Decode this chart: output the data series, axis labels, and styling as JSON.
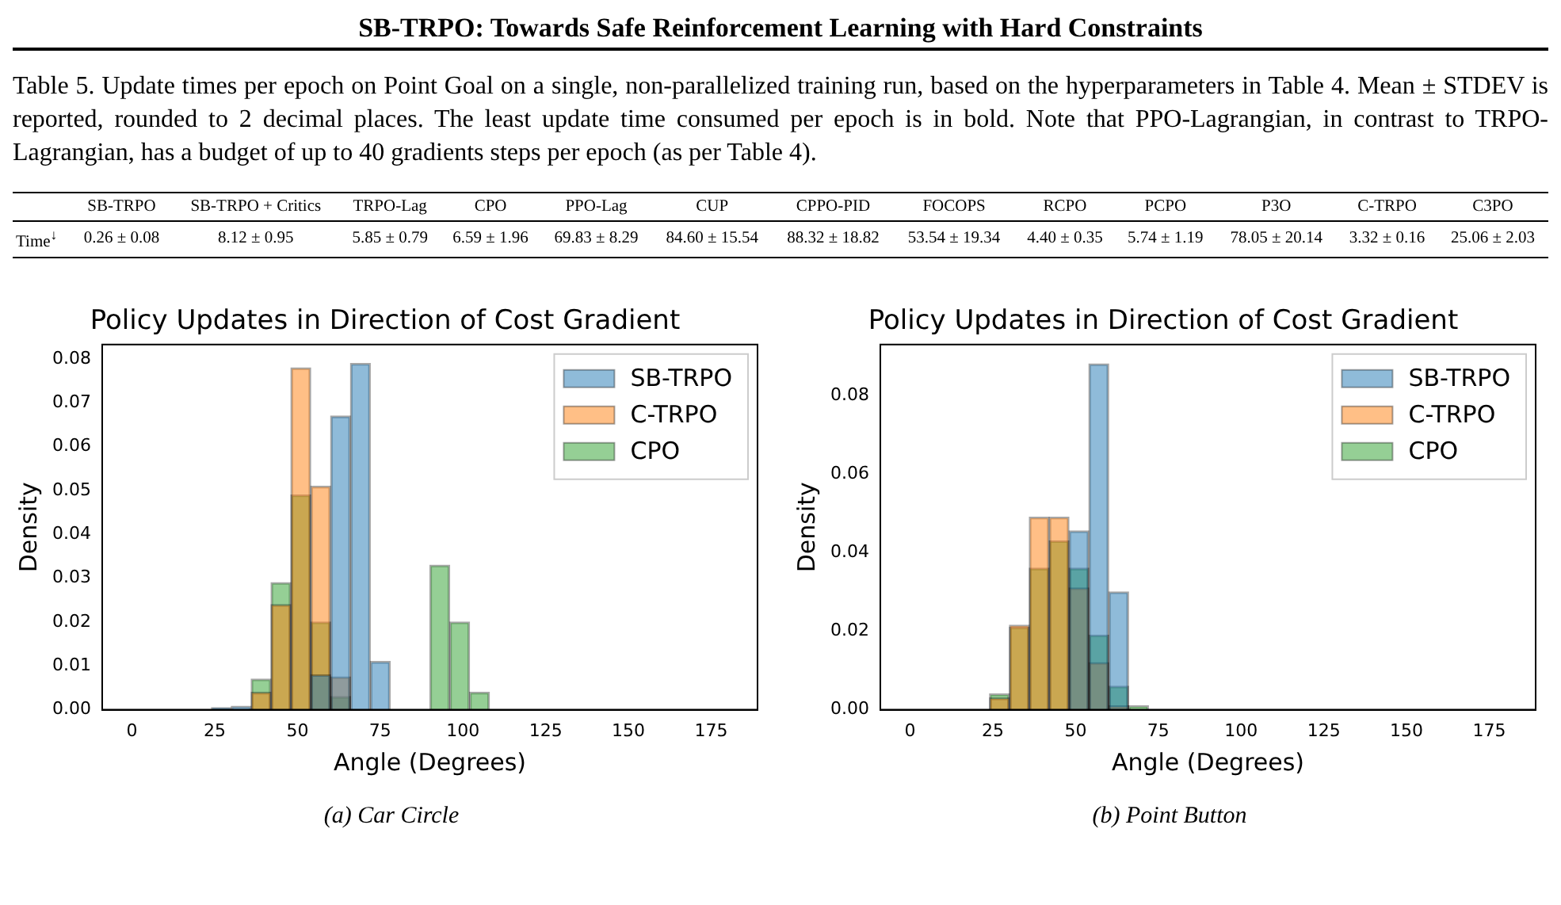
{
  "chart_data": [
    {
      "type": "other",
      "title": "SB-TRPO: Towards Safe Reinforcement Learning with Hard Constraints",
      "subtitle": "Table 5. Update times per epoch on Point Goal on a single, non-parallelized training run, based on the hyperparameters in Table 4. Mean ± STDEV is reported, rounded to 2 decimal places. The least update time consumed per epoch is in bold. Note that PPO-Lagrangian, in contrast to TRPO-Lagrangian, has a budget of up to 40 gradients steps per epoch (as per Table 4).",
      "categories": [
        "SB-TRPO",
        "SB-TRPO + Critics",
        "TRPO-Lag",
        "CPO",
        "PPO-Lag",
        "CUP",
        "CPPO-PID",
        "FOCOPS",
        "RCPO",
        "PCPO",
        "P3O",
        "C-TRPO",
        "C3PO"
      ],
      "annotations": [
        "Time$^{↓}$",
        "0.26 ± 0.08",
        "8.12 ± 0.95",
        "5.85 ± 0.79",
        "6.59 ± 1.96",
        "69.83 ± 8.29",
        "84.60 ± 15.54",
        "88.32 ± 18.82",
        "53.54 ± 19.34",
        "4.40 ± 0.35",
        "5.74 ± 1.19",
        "78.05 ± 20.14",
        "3.32 ± 0.16",
        "25.06 ± 2.03"
      ]
    },
    {
      "type": "histogram",
      "title": "Policy Updates in Direction of Cost Gradient",
      "xlabel": "Angle (Degrees)",
      "ylabel": "Density",
      "annotations": [
        "(a) Car Circle"
      ],
      "bins": [
        0,
        6,
        12,
        18,
        24,
        30,
        36,
        42,
        48,
        54,
        60,
        66,
        72,
        78,
        84,
        90,
        96,
        102,
        108,
        114,
        120,
        126,
        132,
        138,
        144,
        150,
        156,
        162,
        168,
        174,
        180
      ],
      "series": [
        {
          "name": "SB-TRPO",
          "color": "#1f77b4",
          "values": [
            null,
            0,
            0,
            0,
            0.0005,
            0.0008,
            0,
            0,
            0,
            0.008,
            0.067,
            0.079,
            0.011,
            0,
            0,
            0,
            0,
            0,
            0,
            0,
            0,
            0,
            0,
            0,
            0,
            0,
            0,
            0,
            0,
            0
          ]
        },
        {
          "name": "C-TRPO",
          "color": "#ff7f0e",
          "values": [
            0,
            0,
            0,
            0,
            0,
            0,
            0.004,
            0.024,
            0.078,
            0.051,
            0.0075,
            0,
            0,
            0,
            0,
            0,
            0,
            0,
            0,
            0,
            0,
            0,
            0,
            0,
            0,
            0,
            0,
            0,
            0,
            0
          ]
        },
        {
          "name": "CPO",
          "color": "#2ca02c",
          "values": [
            0,
            0,
            0,
            0,
            0,
            0,
            0.007,
            0.029,
            0.049,
            0.02,
            0.003,
            0,
            0,
            0,
            0,
            0.033,
            0.02,
            0.004,
            0,
            0,
            0,
            0,
            0,
            0,
            0,
            0,
            0,
            0,
            0,
            0
          ]
        }
      ],
      "xlim": [
        -9,
        189
      ],
      "xticks": [
        0,
        25,
        50,
        75,
        100,
        125,
        150,
        175
      ],
      "ylim": [
        0,
        0.0833
      ],
      "yticks": [
        {
          "value": 0,
          "label": "0.00"
        },
        0.01,
        0.02,
        0.03,
        0.04,
        0.05,
        0.06,
        0.07,
        0.08
      ],
      "legend": "top right"
    },
    {
      "type": "histogram",
      "title": "Policy Updates in Direction of Cost Gradient",
      "xlabel": "Angle (Degrees)",
      "ylabel": "Density",
      "annotations": [
        "(b) Point Button"
      ],
      "bins": [
        0,
        6,
        12,
        18,
        24,
        30,
        36,
        42,
        48,
        54,
        60,
        66,
        72,
        78,
        84,
        90,
        96,
        102,
        108,
        114,
        120,
        126,
        132,
        138,
        144,
        150,
        156,
        162,
        168,
        174,
        180
      ],
      "series": [
        {
          "name": "SB-TRPO",
          "color": "#1f77b4",
          "values": [
            0,
            0,
            0,
            null,
            null,
            null,
            null,
            null,
            0.0455,
            0.088,
            0.03,
            null,
            0,
            0,
            0,
            0,
            0,
            0,
            0,
            0,
            0,
            0,
            0,
            0,
            0,
            0,
            0,
            0,
            0,
            0
          ]
        },
        {
          "name": "C-TRPO",
          "color": "#ff7f0e",
          "values": [
            0,
            0,
            0,
            0,
            0.003,
            0.0215,
            0.049,
            0.049,
            0.031,
            0.012,
            0.001,
            0,
            0,
            0,
            0,
            0,
            0,
            0,
            0,
            0,
            0,
            0,
            0,
            0,
            0,
            0,
            0,
            0,
            0,
            0
          ]
        },
        {
          "name": "CPO",
          "color": "#2ca02c",
          "values": [
            0,
            0,
            0,
            0,
            0.004,
            0.021,
            0.036,
            0.043,
            0.036,
            0.019,
            0.006,
            0.001,
            0,
            0,
            0,
            0,
            0,
            0,
            0,
            0,
            0,
            0,
            0,
            0,
            0,
            0,
            0,
            0,
            0,
            0
          ]
        }
      ],
      "xlim": [
        -9,
        189
      ],
      "xticks": [
        0,
        25,
        50,
        75,
        100,
        125,
        150,
        175
      ],
      "ylim": [
        0,
        0.0929
      ],
      "yticks": [
        {
          "value": 0,
          "label": "0.00"
        },
        0.02,
        0.04,
        0.06,
        0.08
      ],
      "legend": "top right"
    }
  ]
}
